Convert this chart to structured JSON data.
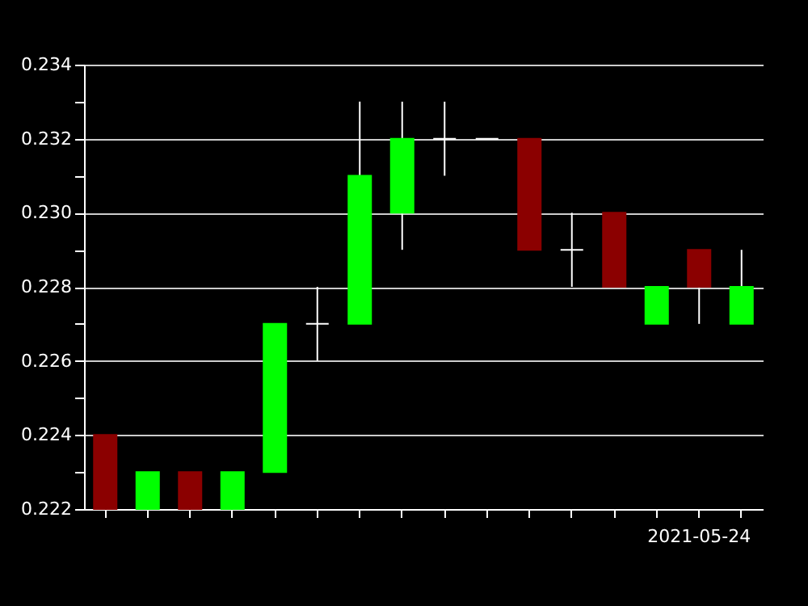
{
  "chart_data": {
    "type": "candlestick",
    "categories": [
      null,
      null,
      null,
      null,
      null,
      null,
      null,
      null,
      null,
      null,
      null,
      null,
      null,
      null,
      "2021-05-24",
      null
    ],
    "ohlc": [
      [
        0.224,
        0.224,
        0.222,
        0.222
      ],
      [
        0.222,
        0.223,
        0.222,
        0.223
      ],
      [
        0.223,
        0.223,
        0.222,
        0.222
      ],
      [
        0.222,
        0.223,
        0.222,
        0.223
      ],
      [
        0.223,
        0.227,
        0.223,
        0.227
      ],
      [
        0.227,
        0.228,
        0.226,
        0.227
      ],
      [
        0.227,
        0.233,
        0.227,
        0.231
      ],
      [
        0.23,
        0.233,
        0.229,
        0.232
      ],
      [
        0.232,
        0.233,
        0.231,
        0.232
      ],
      [
        0.232,
        0.232,
        0.232,
        0.232
      ],
      [
        0.232,
        0.232,
        0.229,
        0.229
      ],
      [
        0.229,
        0.23,
        0.228,
        0.229
      ],
      [
        0.23,
        0.23,
        0.228,
        0.228
      ],
      [
        0.227,
        0.228,
        0.227,
        0.228
      ],
      [
        0.229,
        0.229,
        0.227,
        0.228
      ],
      [
        0.227,
        0.229,
        0.227,
        0.228
      ]
    ],
    "colors": [
      "#8b0000",
      "#00ff00",
      "#8b0000",
      "#00ff00",
      "#00ff00",
      "#ffffff",
      "#00ff00",
      "#00ff00",
      "#ffffff",
      "#ffffff",
      "#8b0000",
      "#ffffff",
      "#8b0000",
      "#00ff00",
      "#8b0000",
      "#00ff00"
    ],
    "ylim": [
      0.222,
      0.234
    ],
    "yticks": [
      0.222,
      {
        "value": 0.223,
        "label": null
      },
      0.224,
      {
        "value": 0.225,
        "label": null
      },
      0.226,
      {
        "value": 0.227,
        "label": null
      },
      0.228,
      {
        "value": 0.229,
        "label": null
      },
      {
        "value": 0.23,
        "label": "0.230"
      },
      {
        "value": 0.231,
        "label": null
      },
      0.232,
      {
        "value": 0.233,
        "label": null
      },
      0.234
    ],
    "grid": "y"
  }
}
